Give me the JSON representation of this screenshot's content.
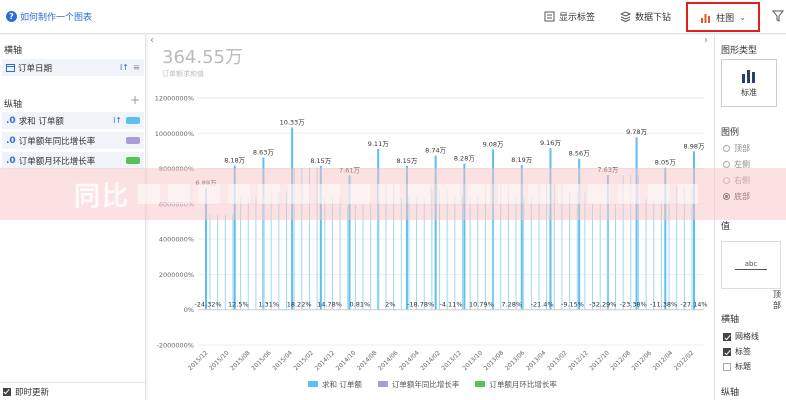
{
  "toolbar": {
    "help_link": "如何制作一个图表",
    "show_labels": "显示标签",
    "drill_down": "数据下钻",
    "chart_type": "柱图"
  },
  "left_panel": {
    "horizontal_axis_title": "横轴",
    "horizontal_fields": [
      {
        "label": "订单日期"
      }
    ],
    "vertical_axis_title": "纵轴",
    "vertical_fields": [
      {
        "label": "求和 订单额",
        "color": "#5bc0f0"
      },
      {
        "label": "订单额年同比增长率",
        "color": "#a89bd6"
      },
      {
        "label": "订单额月环比增长率",
        "color": "#56c05a"
      }
    ],
    "realtime_update": "即时更新"
  },
  "summary": {
    "value": "364.55万",
    "caption": "订单额求和值"
  },
  "watermark": {
    "text": "同比"
  },
  "right_panel": {
    "chart_type_title": "图形类型",
    "chart_type_value": "标准",
    "legend_title": "图例",
    "legend_options": [
      "顶部",
      "左侧",
      "右侧",
      "底部"
    ],
    "legend_selected": "底部",
    "value_title": "值",
    "value_preview": "abc",
    "top_label": "顶部",
    "horizontal_axis_title": "横轴",
    "axis_options": [
      {
        "label": "网格线",
        "checked": true
      },
      {
        "label": "标签",
        "checked": true
      },
      {
        "label": "标题",
        "checked": false
      }
    ],
    "vertical_axis_title": "纵轴"
  },
  "chart_data": {
    "type": "bar",
    "y_ticks": [
      "12000000%",
      "10000000%",
      "8000000%",
      "6000000%",
      "4000000%",
      "2000000%",
      "0%",
      "-2000000%"
    ],
    "ylim": [
      -2000000,
      12000000
    ],
    "x_ticks": [
      "2015/12",
      "2015/10",
      "2015/08",
      "2015/06",
      "2015/04",
      "2015/02",
      "2014/12",
      "2014/10",
      "2014/08",
      "2014/06",
      "2014/04",
      "2014/02",
      "2013/12",
      "2013/10",
      "2013/08",
      "2013/06",
      "2013/04",
      "2013/02",
      "2012/12",
      "2012/10",
      "2012/08",
      "2012/06",
      "2012/04",
      "2012/02"
    ],
    "series": [
      {
        "name": "求和 订单额",
        "color": "#5bc0f0",
        "values": [
          6890000,
          8180000,
          8630000,
          10330000,
          8150000,
          7610000,
          9110000,
          8150000,
          8740000,
          8280000,
          9080000,
          8190000,
          9160000,
          8560000,
          7630000,
          9780000,
          8050000,
          8980000
        ],
        "labels": [
          "6.89万",
          "8.18万",
          "8.63万",
          "10.33万",
          "8.15万",
          "7.61万",
          "9.11万",
          "8.15万",
          "8.74万",
          "8.28万",
          "9.08万",
          "8.19万",
          "9.16万",
          "8.56万",
          "7.63万",
          "9.78万",
          "8.05万",
          "8.98万"
        ]
      },
      {
        "name": "订单额年同比增长率",
        "color": "#a89bd6",
        "labels": [
          "-24.32%",
          "12.5%",
          "1.31%",
          "18.22%",
          "14.78%",
          "0.81%",
          "2%",
          "-18.78%",
          "-4.11%",
          "10.79%",
          "7.28%",
          "-21.4%",
          "-9.15%",
          "-32.29%",
          "-23.38%",
          "-11.38%",
          "-27.14%"
        ]
      },
      {
        "name": "订单额月环比增长率",
        "color": "#56c05a",
        "labels": []
      }
    ],
    "legend_position": "bottom",
    "grid": true
  }
}
